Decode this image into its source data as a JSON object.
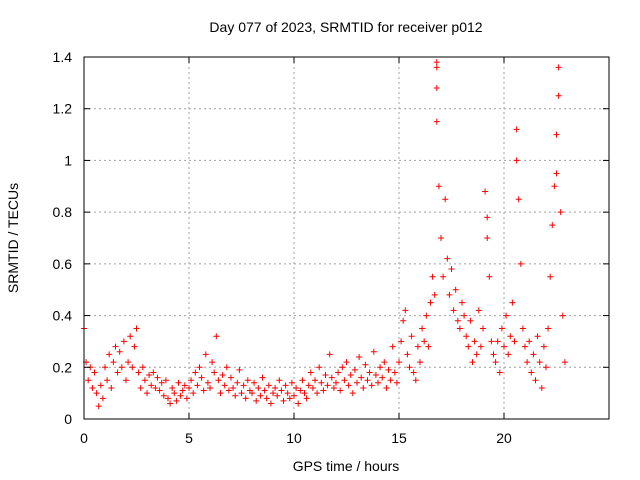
{
  "chart_data": {
    "type": "scatter",
    "title": "Day 077 of 2023, SRMTID for receiver p012",
    "xlabel": "GPS time / hours",
    "ylabel": "SRMTID / TECUs",
    "xlim": [
      0,
      25
    ],
    "ylim": [
      0,
      1.4
    ],
    "xticks": [
      0,
      5,
      10,
      15,
      20
    ],
    "xtick_labels": [
      "0",
      "5",
      "10",
      "15",
      "20"
    ],
    "yticks": [
      0,
      0.2,
      0.4,
      0.6,
      0.8,
      1.0,
      1.2,
      1.4
    ],
    "ytick_labels": [
      "0",
      "0.2",
      "0.4",
      "0.6",
      "0.8",
      "1",
      "1.2",
      "1.4"
    ],
    "grid": true,
    "marker": "plus",
    "color": "#ff0000",
    "series": [
      {
        "name": "SRMTID",
        "x": [
          0.0,
          0.1,
          0.2,
          0.3,
          0.4,
          0.5,
          0.6,
          0.7,
          0.8,
          0.9,
          1.0,
          1.1,
          1.2,
          1.3,
          1.4,
          1.5,
          1.6,
          1.7,
          1.8,
          1.9,
          2.0,
          2.1,
          2.2,
          2.3,
          2.4,
          2.5,
          2.6,
          2.7,
          2.8,
          2.9,
          3.0,
          3.1,
          3.2,
          3.3,
          3.4,
          3.5,
          3.6,
          3.7,
          3.8,
          3.9,
          4.0,
          4.1,
          4.2,
          4.3,
          4.4,
          4.5,
          4.6,
          4.7,
          4.8,
          4.9,
          5.0,
          5.1,
          5.2,
          5.3,
          5.4,
          5.5,
          5.6,
          5.7,
          5.8,
          5.9,
          6.0,
          6.1,
          6.2,
          6.3,
          6.4,
          6.5,
          6.6,
          6.7,
          6.8,
          6.9,
          7.0,
          7.1,
          7.2,
          7.3,
          7.4,
          7.5,
          7.6,
          7.7,
          7.8,
          7.9,
          8.0,
          8.1,
          8.2,
          8.3,
          8.4,
          8.5,
          8.6,
          8.7,
          8.8,
          8.9,
          9.0,
          9.1,
          9.2,
          9.3,
          9.4,
          9.5,
          9.6,
          9.7,
          9.8,
          9.9,
          10.0,
          10.1,
          10.2,
          10.3,
          10.4,
          10.5,
          10.6,
          10.7,
          10.8,
          10.9,
          11.0,
          11.1,
          11.2,
          11.3,
          11.4,
          11.5,
          11.6,
          11.7,
          11.8,
          11.9,
          12.0,
          12.1,
          12.2,
          12.3,
          12.4,
          12.5,
          12.6,
          12.7,
          12.8,
          12.9,
          13.0,
          13.1,
          13.2,
          13.3,
          13.4,
          13.5,
          13.6,
          13.7,
          13.8,
          13.9,
          14.0,
          14.1,
          14.2,
          14.3,
          14.4,
          14.5,
          14.6,
          14.7,
          14.8,
          14.9,
          15.0,
          15.1,
          15.2,
          15.3,
          15.4,
          15.5,
          15.6,
          15.7,
          15.8,
          15.9,
          16.0,
          16.1,
          16.2,
          16.3,
          16.4,
          16.5,
          16.6,
          16.7,
          16.8,
          16.8,
          16.8,
          16.8,
          16.9,
          17.0,
          17.1,
          17.2,
          17.3,
          17.4,
          17.5,
          17.6,
          17.7,
          17.8,
          17.9,
          18.0,
          18.1,
          18.2,
          18.3,
          18.4,
          18.5,
          18.6,
          18.7,
          18.8,
          18.9,
          19.0,
          19.1,
          19.2,
          19.2,
          19.3,
          19.4,
          19.5,
          19.6,
          19.7,
          19.8,
          19.9,
          20.0,
          20.1,
          20.2,
          20.3,
          20.4,
          20.5,
          20.6,
          20.6,
          20.7,
          20.8,
          20.9,
          21.0,
          21.1,
          21.2,
          21.3,
          21.4,
          21.5,
          21.6,
          21.7,
          21.8,
          21.9,
          22.0,
          22.1,
          22.2,
          22.3,
          22.4,
          22.5,
          22.5,
          22.6,
          22.6,
          22.7,
          22.8,
          22.9
        ],
        "y": [
          0.35,
          0.22,
          0.15,
          0.2,
          0.12,
          0.18,
          0.1,
          0.05,
          0.13,
          0.08,
          0.2,
          0.15,
          0.25,
          0.12,
          0.22,
          0.28,
          0.18,
          0.26,
          0.2,
          0.3,
          0.15,
          0.22,
          0.32,
          0.2,
          0.28,
          0.35,
          0.18,
          0.12,
          0.2,
          0.15,
          0.1,
          0.17,
          0.13,
          0.18,
          0.12,
          0.16,
          0.11,
          0.14,
          0.09,
          0.15,
          0.08,
          0.06,
          0.12,
          0.1,
          0.07,
          0.14,
          0.09,
          0.11,
          0.13,
          0.08,
          0.12,
          0.15,
          0.1,
          0.18,
          0.13,
          0.2,
          0.16,
          0.11,
          0.25,
          0.14,
          0.12,
          0.22,
          0.18,
          0.32,
          0.15,
          0.1,
          0.17,
          0.13,
          0.2,
          0.11,
          0.16,
          0.12,
          0.09,
          0.14,
          0.19,
          0.1,
          0.13,
          0.08,
          0.15,
          0.11,
          0.1,
          0.14,
          0.07,
          0.12,
          0.09,
          0.16,
          0.11,
          0.08,
          0.13,
          0.06,
          0.1,
          0.12,
          0.09,
          0.15,
          0.11,
          0.07,
          0.13,
          0.1,
          0.08,
          0.14,
          0.09,
          0.12,
          0.06,
          0.11,
          0.15,
          0.1,
          0.08,
          0.13,
          0.18,
          0.12,
          0.15,
          0.1,
          0.2,
          0.14,
          0.11,
          0.17,
          0.13,
          0.25,
          0.16,
          0.12,
          0.14,
          0.18,
          0.11,
          0.2,
          0.15,
          0.22,
          0.13,
          0.17,
          0.1,
          0.19,
          0.14,
          0.24,
          0.16,
          0.12,
          0.21,
          0.15,
          0.18,
          0.13,
          0.26,
          0.17,
          0.14,
          0.2,
          0.16,
          0.22,
          0.12,
          0.19,
          0.15,
          0.28,
          0.18,
          0.14,
          0.22,
          0.3,
          0.38,
          0.42,
          0.25,
          0.2,
          0.32,
          0.18,
          0.15,
          0.28,
          0.22,
          0.35,
          0.3,
          0.4,
          0.28,
          0.45,
          0.55,
          0.48,
          1.38,
          1.36,
          1.28,
          1.15,
          0.9,
          0.7,
          0.55,
          0.85,
          0.62,
          0.48,
          0.58,
          0.42,
          0.5,
          0.38,
          0.35,
          0.45,
          0.4,
          0.32,
          0.28,
          0.38,
          0.22,
          0.3,
          0.25,
          0.42,
          0.28,
          0.35,
          0.88,
          0.78,
          0.7,
          0.55,
          0.3,
          0.25,
          0.22,
          0.3,
          0.18,
          0.35,
          0.28,
          0.4,
          0.25,
          0.32,
          0.45,
          0.3,
          1.12,
          1.0,
          0.85,
          0.6,
          0.35,
          0.28,
          0.22,
          0.3,
          0.18,
          0.25,
          0.15,
          0.32,
          0.22,
          0.12,
          0.28,
          0.2,
          0.35,
          0.55,
          0.75,
          0.9,
          1.1,
          0.95,
          1.36,
          1.25,
          0.8,
          0.4,
          0.22
        ]
      }
    ]
  }
}
